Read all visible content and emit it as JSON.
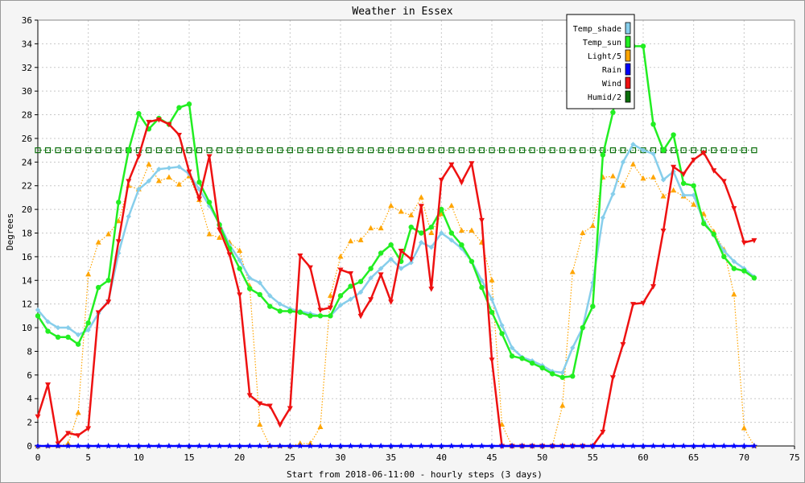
{
  "chart_data": {
    "type": "line",
    "title": "Weather in Essex",
    "xlabel": "Start from 2018-06-11:00 - hourly steps (3 days)",
    "ylabel": "Degrees",
    "xlim": [
      0,
      75
    ],
    "ylim": [
      0,
      36
    ],
    "x_ticks": [
      0,
      5,
      10,
      15,
      20,
      25,
      30,
      35,
      40,
      45,
      50,
      55,
      60,
      65,
      70,
      75
    ],
    "y_ticks": [
      0,
      2,
      4,
      6,
      8,
      10,
      12,
      14,
      16,
      18,
      20,
      22,
      24,
      26,
      28,
      30,
      32,
      34,
      36
    ],
    "grid": true,
    "legend_position": "top-right",
    "series": [
      {
        "name": "Temp_shade",
        "color": "#87ceeb",
        "marker": "diamond",
        "values": [
          11.5,
          10.5,
          10.0,
          10.0,
          9.4,
          9.8,
          11.2,
          12.3,
          16.3,
          19.4,
          21.7,
          22.4,
          23.4,
          23.5,
          23.6,
          23.0,
          21.7,
          20.3,
          18.8,
          17.0,
          15.7,
          14.2,
          13.8,
          12.7,
          12.0,
          11.6,
          11.4,
          11.2,
          11.0,
          11.0,
          11.9,
          12.4,
          13.0,
          14.2,
          15.0,
          15.8,
          15.0,
          15.5,
          17.2,
          16.8,
          18.0,
          17.4,
          16.7,
          15.6,
          14.0,
          12.4,
          10.2,
          8.3,
          7.5,
          7.2,
          6.8,
          6.3,
          6.2,
          8.3,
          10.0,
          13.8,
          19.3,
          21.3,
          24.0,
          25.5,
          25.0,
          24.7,
          22.5,
          23.2,
          21.2,
          21.2,
          19.0,
          17.8,
          16.5,
          15.6,
          15.0,
          14.3
        ]
      },
      {
        "name": "Temp_sun",
        "color": "#22ee22",
        "marker": "circle",
        "values": [
          11.0,
          9.7,
          9.2,
          9.2,
          8.6,
          10.4,
          13.4,
          14.0,
          20.6,
          25.0,
          28.1,
          26.8,
          27.7,
          27.2,
          28.6,
          28.9,
          22.3,
          20.6,
          18.7,
          16.7,
          15.0,
          13.3,
          12.8,
          11.8,
          11.4,
          11.4,
          11.3,
          11.0,
          11.0,
          11.0,
          12.7,
          13.5,
          13.9,
          15.0,
          16.3,
          17.0,
          15.6,
          18.5,
          18.0,
          18.5,
          20.0,
          18.0,
          17.0,
          15.6,
          13.4,
          11.3,
          9.5,
          7.6,
          7.4,
          7.0,
          6.6,
          6.1,
          5.8,
          5.9,
          10.0,
          11.8,
          24.6,
          28.2,
          33.2,
          33.8,
          33.8,
          27.2,
          25.0,
          26.3,
          22.2,
          22.0,
          18.8,
          17.9,
          16.0,
          15.0,
          14.8,
          14.2
        ]
      },
      {
        "name": "Light/5",
        "color": "#ffa500",
        "marker": "triangle-up",
        "values": [
          0,
          0,
          0,
          0.2,
          2.8,
          14.5,
          17.2,
          17.9,
          19.0,
          22.0,
          21.7,
          23.8,
          22.4,
          22.7,
          22.1,
          22.8,
          20.8,
          17.9,
          17.6,
          17.2,
          16.5,
          13.5,
          1.8,
          0,
          0,
          0,
          0.2,
          0.2,
          1.6,
          12.7,
          16.0,
          17.3,
          17.4,
          18.4,
          18.4,
          20.3,
          19.8,
          19.5,
          21.0,
          18.0,
          19.6,
          20.3,
          18.2,
          18.2,
          17.2,
          14.0,
          1.8,
          0,
          0,
          0,
          0,
          0,
          3.4,
          14.7,
          18.0,
          18.6,
          22.7,
          22.8,
          22.0,
          23.8,
          22.6,
          22.7,
          21.1,
          21.6,
          21.1,
          20.4,
          19.6,
          18.1,
          16.6,
          12.8,
          1.5,
          0
        ]
      },
      {
        "name": "Rain",
        "color": "#0000ff",
        "marker": "star",
        "values": [
          0,
          0,
          0,
          0,
          0,
          0,
          0,
          0,
          0,
          0,
          0,
          0,
          0,
          0,
          0,
          0,
          0,
          0,
          0,
          0,
          0,
          0,
          0,
          0,
          0,
          0,
          0,
          0,
          0,
          0,
          0,
          0,
          0,
          0,
          0,
          0,
          0,
          0,
          0,
          0,
          0,
          0,
          0,
          0,
          0,
          0,
          0,
          0,
          0,
          0,
          0,
          0,
          0,
          0,
          0,
          0,
          0,
          0,
          0,
          0,
          0,
          0,
          0,
          0,
          0,
          0,
          0,
          0,
          0,
          0,
          0,
          0
        ]
      },
      {
        "name": "Wind",
        "color": "#ee1111",
        "marker": "triangle-down",
        "values": [
          2.5,
          5.2,
          0.2,
          1.1,
          0.9,
          1.5,
          11.3,
          12.2,
          17.3,
          22.4,
          24.5,
          27.4,
          27.6,
          27.2,
          26.3,
          23.2,
          20.9,
          24.5,
          18.3,
          16.2,
          12.8,
          4.3,
          3.6,
          3.4,
          1.8,
          3.2,
          16.1,
          15.1,
          11.5,
          11.7,
          14.9,
          14.6,
          11.0,
          12.4,
          14.5,
          12.2,
          16.5,
          15.8,
          20.3,
          13.3,
          22.5,
          23.8,
          22.3,
          23.9,
          19.1,
          7.3,
          0,
          0,
          0,
          0,
          0,
          0,
          0,
          0,
          0,
          0,
          1.2,
          5.8,
          8.6,
          12.0,
          12.1,
          13.5,
          18.2,
          23.6,
          23.0,
          24.2,
          24.8,
          23.3,
          22.4,
          20.1,
          17.2,
          17.4
        ]
      },
      {
        "name": "Humid/2",
        "color": "#0b6e0b",
        "marker": "square",
        "values": [
          25,
          25,
          25,
          25,
          25,
          25,
          25,
          25,
          25,
          25,
          25,
          25,
          25,
          25,
          25,
          25,
          25,
          25,
          25,
          25,
          25,
          25,
          25,
          25,
          25,
          25,
          25,
          25,
          25,
          25,
          25,
          25,
          25,
          25,
          25,
          25,
          25,
          25,
          25,
          25,
          25,
          25,
          25,
          25,
          25,
          25,
          25,
          25,
          25,
          25,
          25,
          25,
          25,
          25,
          25,
          25,
          25,
          25,
          25,
          25,
          25,
          25,
          25,
          25,
          25,
          25,
          25,
          25,
          25,
          25,
          25,
          25
        ]
      }
    ]
  },
  "colors": {
    "background": "#f5f5f5",
    "plot_background": "#ffffff",
    "grid": "#c8c8c8",
    "axis": "#000000"
  }
}
